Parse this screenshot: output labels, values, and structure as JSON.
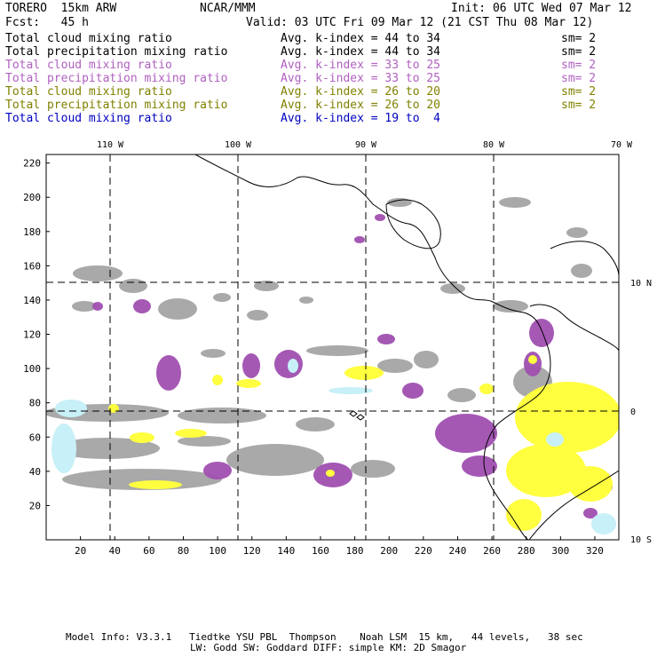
{
  "header": {
    "run_name": "TORERO  15km ARW",
    "org": "NCAR/MMM",
    "init": "Init: 06 UTC Wed 07 Mar 12",
    "fcst": "Fcst:   45 h",
    "valid": "Valid: 03 UTC Fri 09 Mar 12 (21 CST Thu 08 Mar 12)"
  },
  "fields": [
    {
      "name": "Total cloud mixing ratio",
      "kindex": "Avg. k-index = 44 to 34",
      "sm": "sm= 2",
      "color": "#000000"
    },
    {
      "name": "Total precipitation mixing ratio",
      "kindex": "Avg. k-index = 44 to 34",
      "sm": "sm= 2",
      "color": "#000000"
    },
    {
      "name": "Total cloud mixing ratio",
      "kindex": "Avg. k-index = 33 to 25",
      "sm": "sm= 2",
      "color": "#b060c0"
    },
    {
      "name": "Total precipitation mixing ratio",
      "kindex": "Avg. k-index = 33 to 25",
      "sm": "sm= 2",
      "color": "#b060c0"
    },
    {
      "name": "Total cloud mixing ratio",
      "kindex": "Avg. k-index = 26 to 20",
      "sm": "sm= 2",
      "color": "#808000"
    },
    {
      "name": "Total precipitation mixing ratio",
      "kindex": "Avg. k-index = 26 to 20",
      "sm": "sm= 2",
      "color": "#808000"
    },
    {
      "name": "Total cloud mixing ratio",
      "kindex": "Avg. k-index = 19 to  4",
      "sm": "",
      "color": "#0000c0"
    }
  ],
  "map": {
    "lon_labels": [
      "110 W",
      "100 W",
      "90 W",
      "80 W",
      "70 W"
    ],
    "lat_labels": [
      "10 N",
      "0",
      "10 S"
    ],
    "x_ticks": [
      "20",
      "40",
      "60",
      "80",
      "100",
      "120",
      "140",
      "160",
      "180",
      "200",
      "220",
      "240",
      "260",
      "280",
      "300",
      "320"
    ],
    "y_ticks": [
      "20",
      "40",
      "60",
      "80",
      "100",
      "120",
      "140",
      "160",
      "180",
      "200",
      "220"
    ],
    "x_range": [
      0,
      334
    ],
    "y_range": [
      0,
      225
    ],
    "colors": {
      "gray": "#a0a0a0",
      "purple": "#a050b0",
      "yellow": "#ffff40",
      "cyan": "#c8f0f8",
      "coast": "#000000",
      "grid": "#000000"
    }
  },
  "footer": {
    "line1": "Model Info: V3.3.1   Tiedtke YSU PBL  Thompson    Noah LSM  15 km,   44 levels,   38 sec",
    "line2": "LW: Godd SW: Goddard DIFF: simple KM: 2D Smagor"
  }
}
